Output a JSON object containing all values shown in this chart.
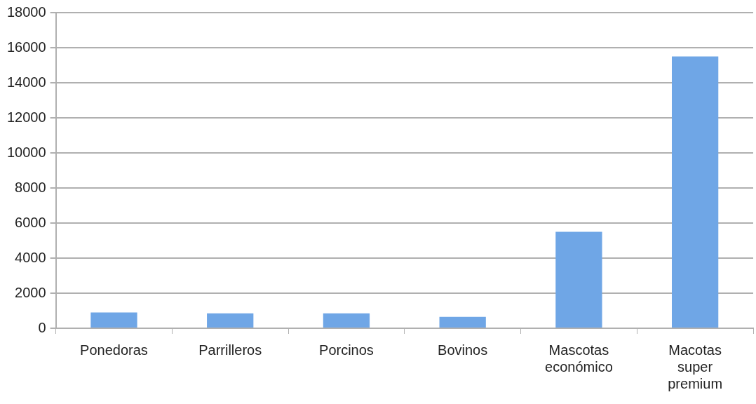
{
  "chart_data": {
    "type": "bar",
    "categories": [
      "Ponedoras",
      "Parrilleros",
      "Porcinos",
      "Bovinos",
      "Mascotas económico",
      "Macotas super premium"
    ],
    "values": [
      900,
      850,
      850,
      650,
      5500,
      15500
    ],
    "color": "#6fa6e6",
    "ylim": [
      0,
      18000
    ],
    "yticks": [
      0,
      2000,
      4000,
      6000,
      8000,
      10000,
      12000,
      14000,
      16000,
      18000
    ],
    "grid": "y",
    "legend": false
  }
}
